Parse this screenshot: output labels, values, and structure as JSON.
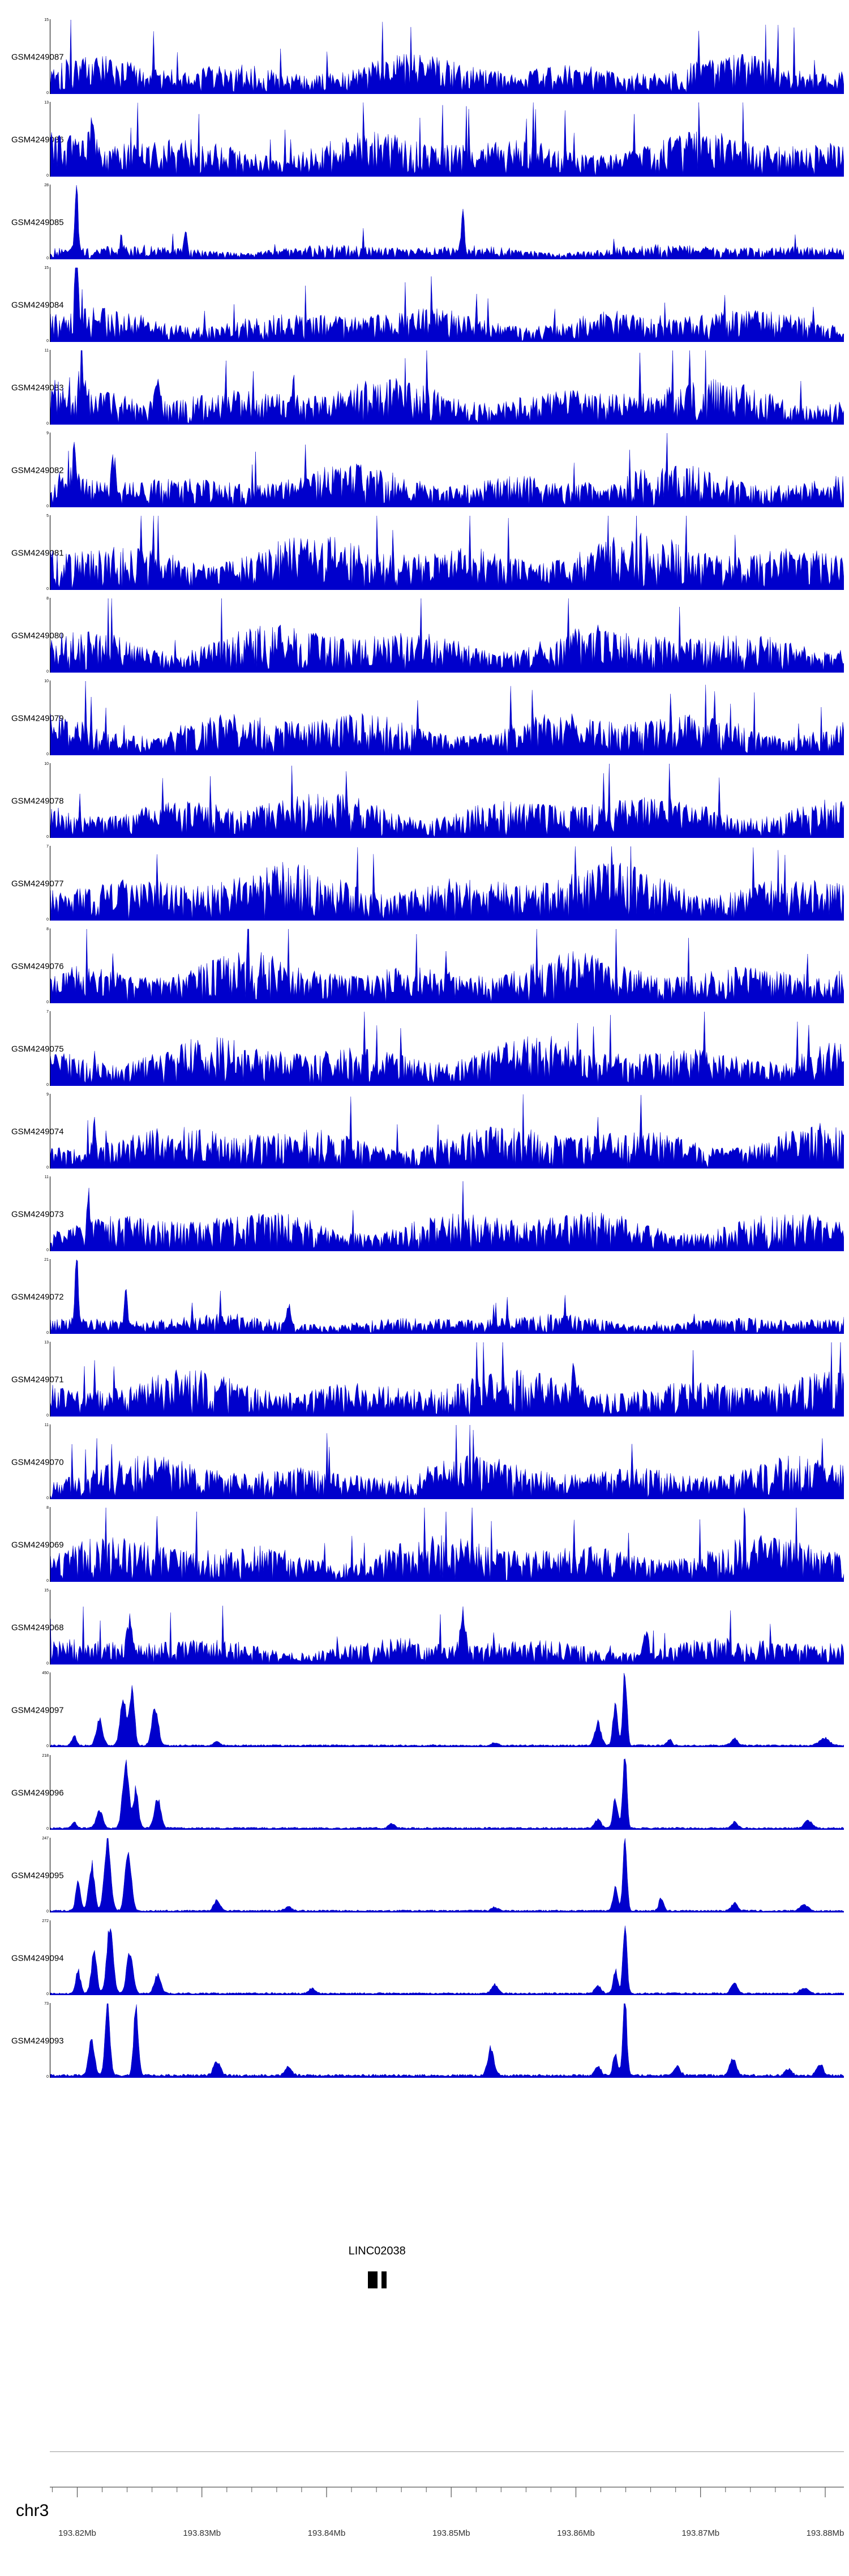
{
  "chart_data": {
    "type": "area",
    "title": "",
    "description": "Stacked genome-browser read-coverage tracks (GEO samples) over a region of chromosome 3 with LINC02038 gene model and genomic ruler",
    "signal_color": "#0000CC",
    "grid": "off",
    "legend": "none",
    "x_axis": {
      "chromosome": "chr3",
      "start_mb": 193.8178,
      "end_mb": 193.8815,
      "major_tick_step_mb": 0.01,
      "minor_tick_step_mb": 0.002,
      "major_tick_values_mb": [
        193.82,
        193.83,
        193.84,
        193.85,
        193.86,
        193.87,
        193.88
      ],
      "major_tick_labels": [
        "193.82Mb",
        "193.83Mb",
        "193.84Mb",
        "193.85Mb",
        "193.86Mb",
        "193.87Mb",
        "193.88Mb"
      ]
    },
    "gene": {
      "name": "LINC02038",
      "exons_mb": [
        [
          193.8433,
          193.8441
        ],
        [
          193.8444,
          193.8448
        ]
      ]
    },
    "tracks": [
      {
        "name": "GSM4249087",
        "ymin": 0,
        "ymax": 15,
        "ymin_label": "0",
        "ymax_label": "15",
        "profile": "dense",
        "amp": 0.55,
        "seed": 101,
        "peaks": []
      },
      {
        "name": "GSM4249086",
        "ymin": 0,
        "ymax": 13,
        "ymin_label": "0",
        "ymax_label": "13",
        "profile": "dense",
        "amp": 0.65,
        "seed": 102,
        "peaks": [
          [
            0.052,
            0.35,
            0.003
          ]
        ]
      },
      {
        "name": "GSM4249085",
        "ymin": 0,
        "ymax": 28,
        "ymin_label": "0",
        "ymax_label": "28",
        "profile": "dense",
        "amp": 0.22,
        "seed": 103,
        "peaks": [
          [
            0.033,
            1.0,
            0.002
          ],
          [
            0.17,
            0.35,
            0.002
          ],
          [
            0.52,
            0.5,
            0.002
          ]
        ]
      },
      {
        "name": "GSM4249084",
        "ymin": 0,
        "ymax": 15,
        "ymin_label": "0",
        "ymax_label": "15",
        "profile": "dense",
        "amp": 0.5,
        "seed": 104,
        "peaks": [
          [
            0.033,
            1.0,
            0.002
          ]
        ]
      },
      {
        "name": "GSM4249083",
        "ymin": 0,
        "ymax": 11,
        "ymin_label": "0",
        "ymax_label": "11",
        "profile": "dense",
        "amp": 0.65,
        "seed": 105,
        "peaks": [
          [
            0.04,
            0.55,
            0.003
          ],
          [
            0.135,
            0.45,
            0.003
          ]
        ]
      },
      {
        "name": "GSM4249082",
        "ymin": 0,
        "ymax": 9,
        "ymin_label": "0",
        "ymax_label": "9",
        "profile": "dense",
        "amp": 0.6,
        "seed": 106,
        "peaks": [
          [
            0.03,
            0.45,
            0.003
          ],
          [
            0.08,
            0.4,
            0.003
          ]
        ]
      },
      {
        "name": "GSM4249081",
        "ymin": 0,
        "ymax": 5,
        "ymin_label": "0",
        "ymax_label": "5",
        "profile": "dense",
        "amp": 0.8,
        "seed": 107,
        "peaks": []
      },
      {
        "name": "GSM4249080",
        "ymin": 0,
        "ymax": 8,
        "ymin_label": "0",
        "ymax_label": "8",
        "profile": "dense",
        "amp": 0.7,
        "seed": 108,
        "peaks": []
      },
      {
        "name": "GSM4249079",
        "ymin": 0,
        "ymax": 10,
        "ymin_label": "0",
        "ymax_label": "10",
        "profile": "dense",
        "amp": 0.65,
        "seed": 109,
        "peaks": []
      },
      {
        "name": "GSM4249078",
        "ymin": 0,
        "ymax": 10,
        "ymin_label": "0",
        "ymax_label": "10",
        "profile": "dense",
        "amp": 0.65,
        "seed": 110,
        "peaks": []
      },
      {
        "name": "GSM4249077",
        "ymin": 0,
        "ymax": 7,
        "ymin_label": "0",
        "ymax_label": "7",
        "profile": "dense",
        "amp": 0.8,
        "seed": 111,
        "peaks": []
      },
      {
        "name": "GSM4249076",
        "ymin": 0,
        "ymax": 8,
        "ymin_label": "0",
        "ymax_label": "8",
        "profile": "dense",
        "amp": 0.7,
        "seed": 112,
        "peaks": []
      },
      {
        "name": "GSM4249075",
        "ymin": 0,
        "ymax": 7,
        "ymin_label": "0",
        "ymax_label": "7",
        "profile": "dense",
        "amp": 0.7,
        "seed": 113,
        "peaks": []
      },
      {
        "name": "GSM4249074",
        "ymin": 0,
        "ymax": 9,
        "ymin_label": "0",
        "ymax_label": "9",
        "profile": "dense",
        "amp": 0.65,
        "seed": 114,
        "peaks": [
          [
            0.055,
            0.5,
            0.002
          ]
        ]
      },
      {
        "name": "GSM4249073",
        "ymin": 0,
        "ymax": 11,
        "ymin_label": "0",
        "ymax_label": "11",
        "profile": "dense",
        "amp": 0.6,
        "seed": 115,
        "peaks": [
          [
            0.048,
            0.55,
            0.002
          ]
        ]
      },
      {
        "name": "GSM4249072",
        "ymin": 0,
        "ymax": 21,
        "ymin_label": "0",
        "ymax_label": "21",
        "profile": "dense",
        "amp": 0.28,
        "seed": 116,
        "peaks": [
          [
            0.033,
            1.0,
            0.002
          ],
          [
            0.095,
            0.45,
            0.002
          ],
          [
            0.3,
            0.3,
            0.002
          ]
        ]
      },
      {
        "name": "GSM4249071",
        "ymin": 0,
        "ymax": 13,
        "ymin_label": "0",
        "ymax_label": "13",
        "profile": "dense",
        "amp": 0.65,
        "seed": 117,
        "peaks": [
          [
            0.66,
            0.4,
            0.003
          ]
        ]
      },
      {
        "name": "GSM4249070",
        "ymin": 0,
        "ymax": 11,
        "ymin_label": "0",
        "ymax_label": "11",
        "profile": "dense",
        "amp": 0.6,
        "seed": 118,
        "peaks": []
      },
      {
        "name": "GSM4249069",
        "ymin": 0,
        "ymax": 8,
        "ymin_label": "0",
        "ymax_label": "8",
        "profile": "dense",
        "amp": 0.65,
        "seed": 119,
        "peaks": []
      },
      {
        "name": "GSM4249068",
        "ymin": 0,
        "ymax": 15,
        "ymin_label": "0",
        "ymax_label": "15",
        "profile": "dense",
        "amp": 0.4,
        "seed": 120,
        "peaks": [
          [
            0.1,
            0.45,
            0.003
          ],
          [
            0.52,
            0.5,
            0.003
          ],
          [
            0.75,
            0.35,
            0.003
          ]
        ]
      },
      {
        "name": "GSM4249097",
        "ymin": 0,
        "ymax": 450,
        "ymin_label": "0",
        "ymax_label": "450",
        "profile": "peaks",
        "amp": 0.02,
        "seed": 121,
        "peaks": [
          [
            0.03,
            0.12,
            0.003
          ],
          [
            0.062,
            0.35,
            0.004
          ],
          [
            0.092,
            0.6,
            0.004
          ],
          [
            0.103,
            0.8,
            0.003
          ],
          [
            0.132,
            0.5,
            0.004
          ],
          [
            0.21,
            0.05,
            0.004
          ],
          [
            0.56,
            0.04,
            0.004
          ],
          [
            0.69,
            0.3,
            0.004
          ],
          [
            0.712,
            0.55,
            0.003
          ],
          [
            0.724,
            1.0,
            0.0025
          ],
          [
            0.78,
            0.08,
            0.003
          ],
          [
            0.862,
            0.1,
            0.004
          ],
          [
            0.975,
            0.1,
            0.006
          ]
        ]
      },
      {
        "name": "GSM4249096",
        "ymin": 0,
        "ymax": 218,
        "ymin_label": "0",
        "ymax_label": "218",
        "profile": "peaks",
        "amp": 0.02,
        "seed": 122,
        "peaks": [
          [
            0.03,
            0.08,
            0.003
          ],
          [
            0.062,
            0.25,
            0.004
          ],
          [
            0.095,
            0.85,
            0.004
          ],
          [
            0.108,
            0.55,
            0.003
          ],
          [
            0.135,
            0.4,
            0.004
          ],
          [
            0.43,
            0.06,
            0.004
          ],
          [
            0.69,
            0.12,
            0.004
          ],
          [
            0.712,
            0.4,
            0.003
          ],
          [
            0.724,
            1.0,
            0.0025
          ],
          [
            0.862,
            0.08,
            0.004
          ],
          [
            0.955,
            0.1,
            0.005
          ]
        ]
      },
      {
        "name": "GSM4249095",
        "ymin": 0,
        "ymax": 247,
        "ymin_label": "0",
        "ymax_label": "247",
        "profile": "peaks",
        "amp": 0.02,
        "seed": 123,
        "peaks": [
          [
            0.035,
            0.4,
            0.003
          ],
          [
            0.052,
            0.65,
            0.0035
          ],
          [
            0.072,
            0.95,
            0.004
          ],
          [
            0.098,
            0.75,
            0.004
          ],
          [
            0.21,
            0.15,
            0.004
          ],
          [
            0.3,
            0.06,
            0.004
          ],
          [
            0.56,
            0.05,
            0.004
          ],
          [
            0.712,
            0.3,
            0.003
          ],
          [
            0.724,
            1.0,
            0.0025
          ],
          [
            0.77,
            0.18,
            0.003
          ],
          [
            0.862,
            0.1,
            0.004
          ],
          [
            0.95,
            0.08,
            0.005
          ]
        ]
      },
      {
        "name": "GSM4249094",
        "ymin": 0,
        "ymax": 272,
        "ymin_label": "0",
        "ymax_label": "272",
        "profile": "peaks",
        "amp": 0.02,
        "seed": 124,
        "peaks": [
          [
            0.035,
            0.3,
            0.003
          ],
          [
            0.055,
            0.55,
            0.0035
          ],
          [
            0.075,
            0.9,
            0.004
          ],
          [
            0.1,
            0.55,
            0.004
          ],
          [
            0.135,
            0.25,
            0.004
          ],
          [
            0.33,
            0.07,
            0.004
          ],
          [
            0.56,
            0.12,
            0.004
          ],
          [
            0.69,
            0.1,
            0.004
          ],
          [
            0.712,
            0.3,
            0.003
          ],
          [
            0.724,
            1.0,
            0.0025
          ],
          [
            0.862,
            0.15,
            0.004
          ],
          [
            0.95,
            0.07,
            0.005
          ]
        ]
      },
      {
        "name": "GSM4249093",
        "ymin": 0,
        "ymax": 73,
        "ymin_label": "0",
        "ymax_label": "73",
        "profile": "peaks",
        "amp": 0.03,
        "seed": 125,
        "peaks": [
          [
            0.052,
            0.5,
            0.0035
          ],
          [
            0.072,
            0.95,
            0.003
          ],
          [
            0.108,
            0.9,
            0.003
          ],
          [
            0.21,
            0.2,
            0.004
          ],
          [
            0.3,
            0.12,
            0.004
          ],
          [
            0.555,
            0.38,
            0.004
          ],
          [
            0.69,
            0.12,
            0.004
          ],
          [
            0.712,
            0.28,
            0.003
          ],
          [
            0.724,
            1.0,
            0.0025
          ],
          [
            0.79,
            0.12,
            0.004
          ],
          [
            0.86,
            0.22,
            0.004
          ],
          [
            0.93,
            0.1,
            0.004
          ],
          [
            0.97,
            0.16,
            0.004
          ]
        ]
      }
    ]
  }
}
